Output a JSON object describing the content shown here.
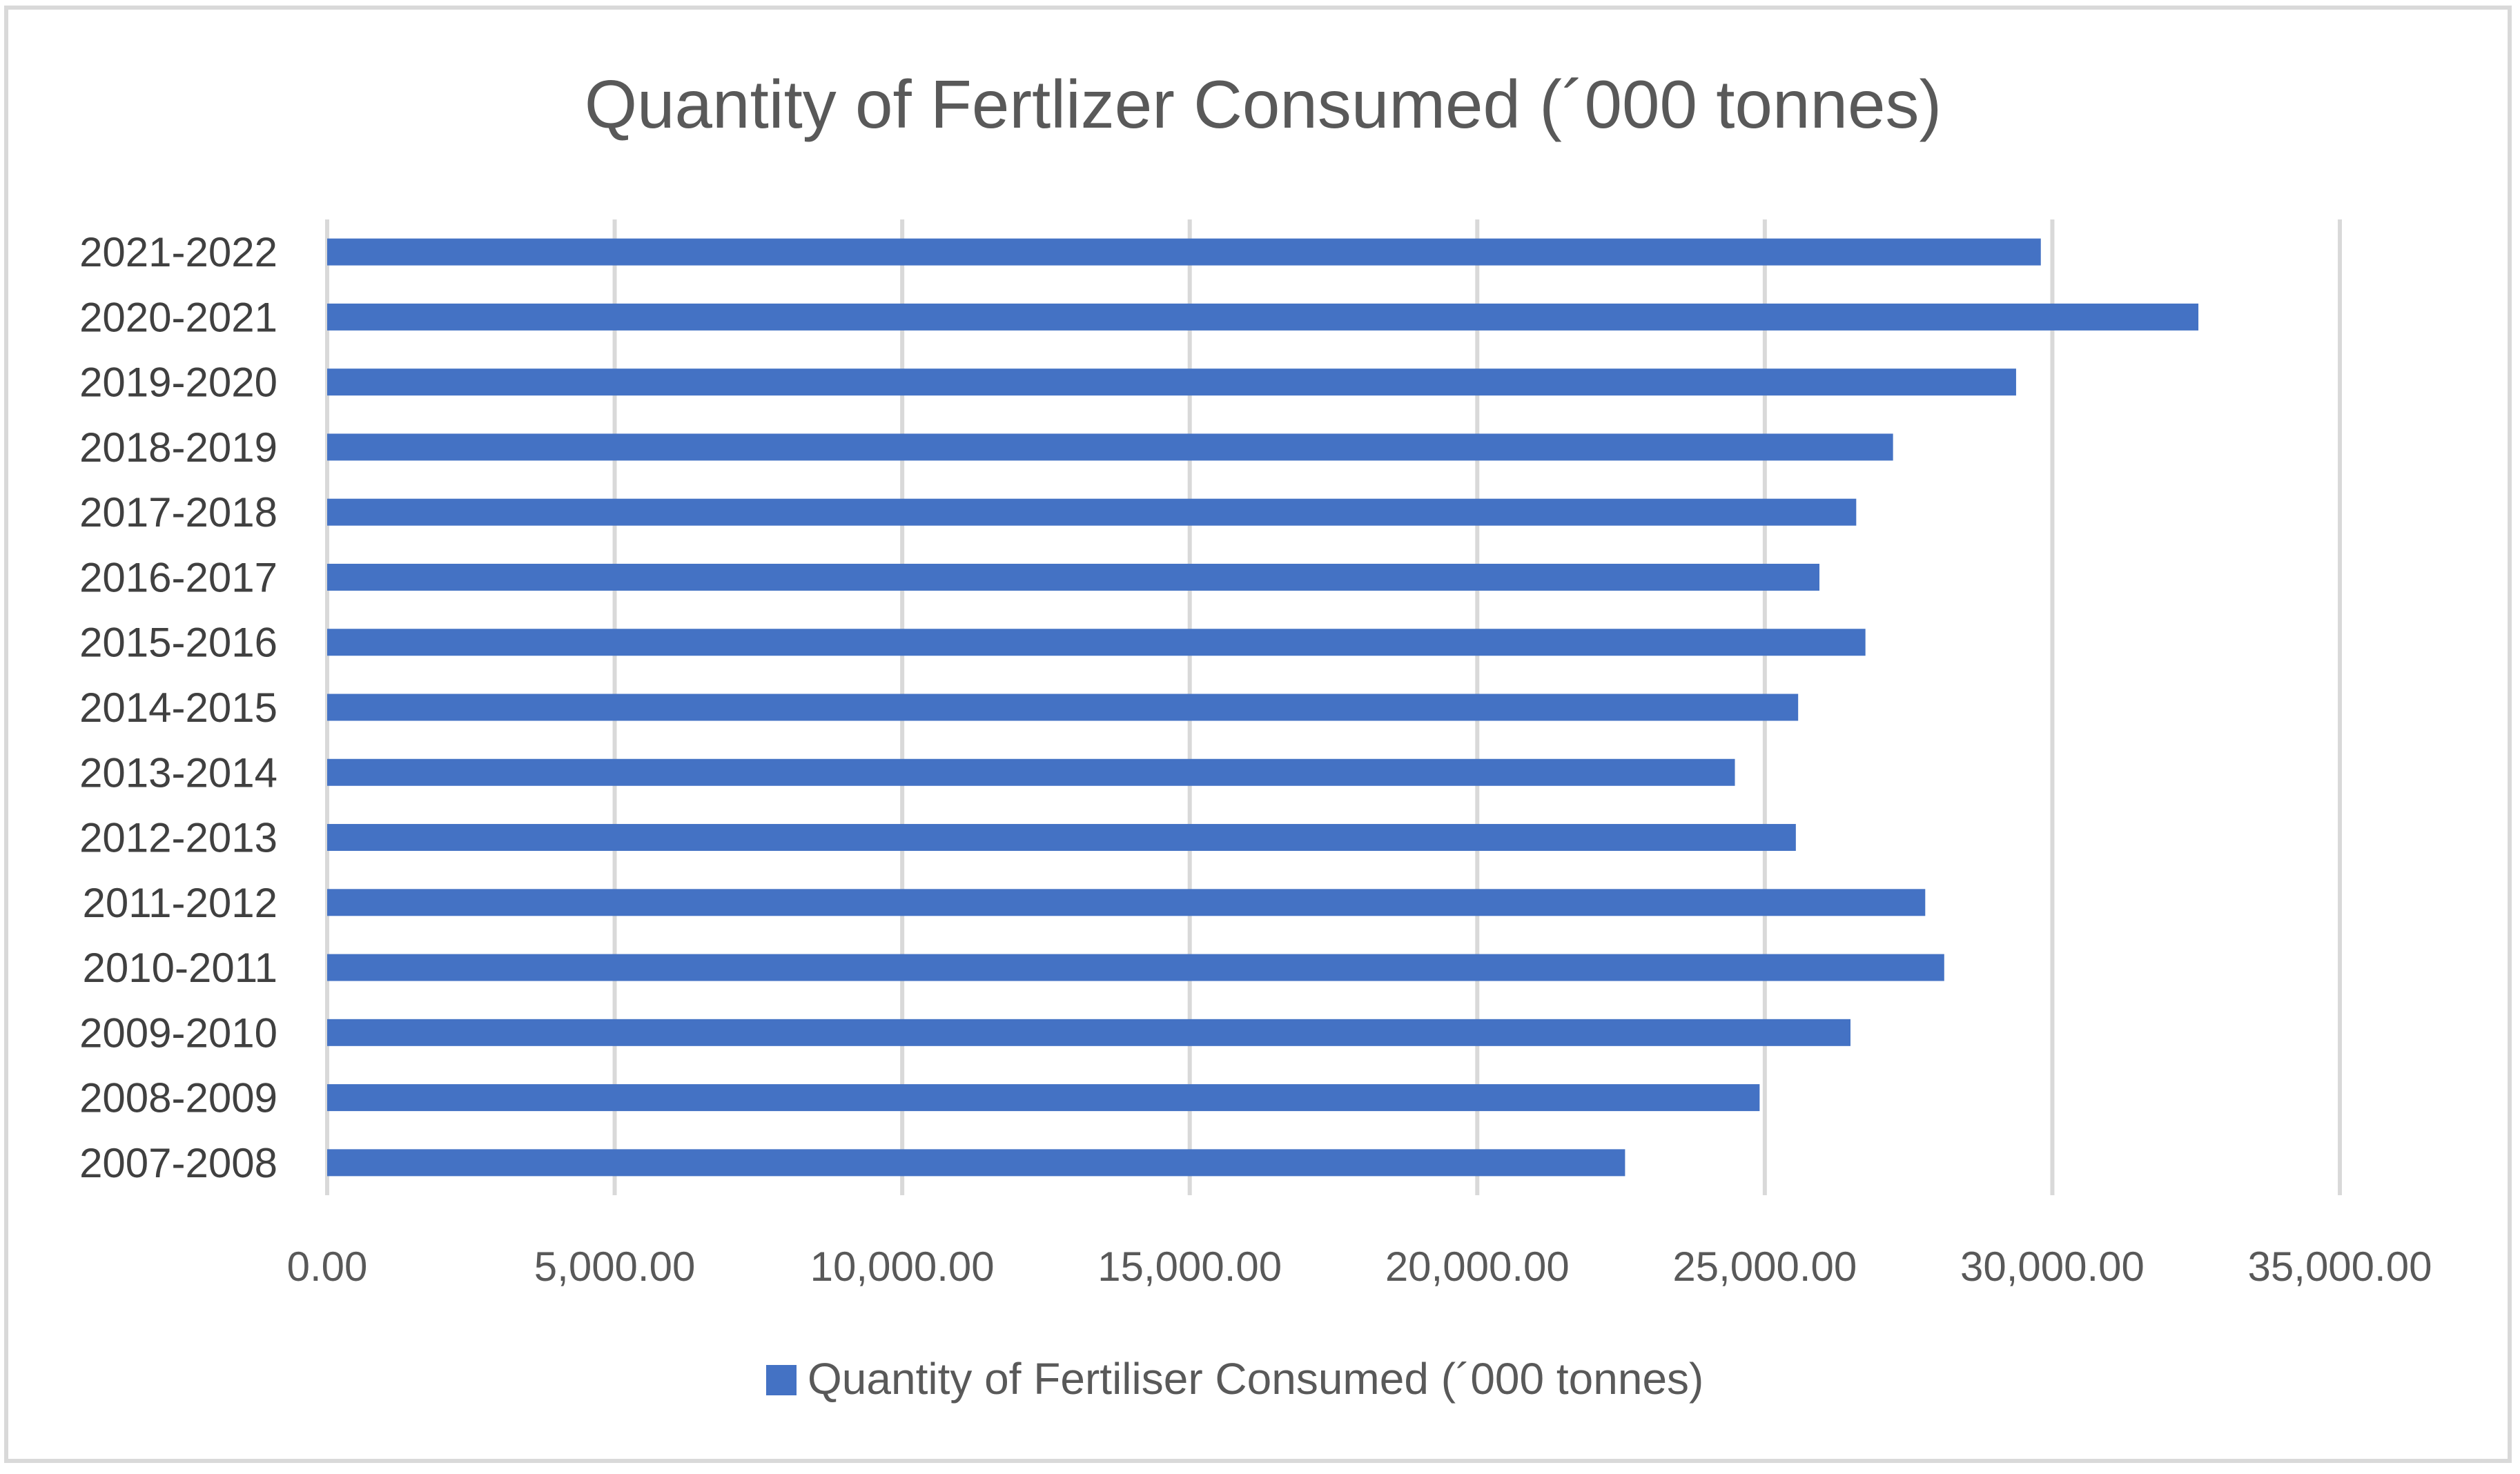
{
  "chart_data": {
    "type": "bar",
    "orientation": "horizontal",
    "title": "Quantity of Fertlizer Consumed (´000 tonnes)",
    "xlabel": "",
    "ylabel": "",
    "categories": [
      "2007-2008",
      "2008-2009",
      "2009-2010",
      "2010-2011",
      "2011-2012",
      "2012-2013",
      "2013-2014",
      "2014-2015",
      "2015-2016",
      "2016-2017",
      "2017-2018",
      "2018-2019",
      "2019-2020",
      "2020-2021",
      "2021-2022"
    ],
    "series": [
      {
        "name": "Quantity of Fertiliser Consumed (´000 tonnes)",
        "color": "#4472c4",
        "values": [
          22570,
          24910,
          26490,
          28120,
          27790,
          25540,
          24480,
          25580,
          26750,
          25950,
          26590,
          27230,
          29370,
          32540,
          29800
        ]
      }
    ],
    "xlim": [
      0,
      35000
    ],
    "ticks": [
      0,
      5000,
      10000,
      15000,
      20000,
      25000,
      30000,
      35000
    ],
    "tick_labels": [
      "0.00",
      "5,000.00",
      "10,000.00",
      "15,000.00",
      "20,000.00",
      "25,000.00",
      "30,000.00",
      "35,000.00"
    ],
    "grid": true,
    "legend_position": "bottom"
  }
}
